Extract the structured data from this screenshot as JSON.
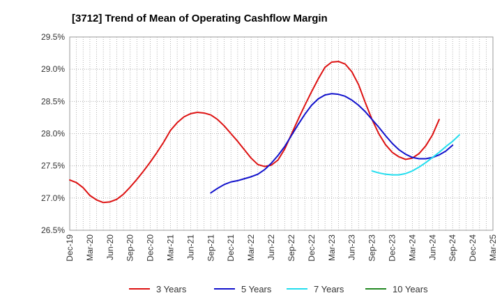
{
  "chart_data": {
    "type": "line",
    "title": "[3712]  Trend of Mean of Operating Cashflow Margin",
    "xlabel": "",
    "ylabel": "",
    "ylim": [
      26.5,
      29.5
    ],
    "yticks": [
      26.5,
      27.0,
      27.5,
      28.0,
      28.5,
      29.0,
      29.5
    ],
    "ytick_labels": [
      "26.5%",
      "27.0%",
      "27.5%",
      "28.0%",
      "28.5%",
      "29.0%",
      "29.5%"
    ],
    "x_range": [
      "Dec-19",
      "Mar-25"
    ],
    "xtick_labels": [
      "Dec-19",
      "Mar-20",
      "Jun-20",
      "Sep-20",
      "Dec-20",
      "Mar-21",
      "Jun-21",
      "Sep-21",
      "Dec-21",
      "Mar-22",
      "Jun-22",
      "Sep-22",
      "Dec-22",
      "Mar-23",
      "Jun-23",
      "Sep-23",
      "Dec-23",
      "Mar-24",
      "Jun-24",
      "Sep-24",
      "Dec-24",
      "Mar-25"
    ],
    "grid": true,
    "legend_position": "bottom",
    "series": [
      {
        "name": "3 Years",
        "color": "#dd1111",
        "start": "Dec-19",
        "values": [
          27.28,
          27.24,
          27.16,
          27.04,
          26.97,
          26.93,
          26.94,
          26.98,
          27.06,
          27.17,
          27.29,
          27.42,
          27.56,
          27.71,
          27.87,
          28.05,
          28.17,
          28.26,
          28.31,
          28.33,
          28.32,
          28.29,
          28.22,
          28.12,
          28.0,
          27.88,
          27.75,
          27.62,
          27.52,
          27.49,
          27.51,
          27.59,
          27.76,
          27.99,
          28.22,
          28.44,
          28.65,
          28.85,
          29.03,
          29.11,
          29.12,
          29.08,
          28.96,
          28.76,
          28.48,
          28.22,
          28.0,
          27.83,
          27.71,
          27.64,
          27.6,
          27.62,
          27.69,
          27.81,
          27.98,
          28.22
        ]
      },
      {
        "name": "5 Years",
        "color": "#1111cc",
        "start": "Sep-21",
        "values": [
          27.08,
          27.15,
          27.21,
          27.25,
          27.27,
          27.3,
          27.33,
          27.37,
          27.44,
          27.54,
          27.66,
          27.8,
          27.97,
          28.14,
          28.3,
          28.44,
          28.54,
          28.6,
          28.62,
          28.61,
          28.58,
          28.52,
          28.44,
          28.34,
          28.22,
          28.1,
          27.97,
          27.85,
          27.75,
          27.68,
          27.63,
          27.61,
          27.61,
          27.63,
          27.67,
          27.73,
          27.82
        ]
      },
      {
        "name": "7 Years",
        "color": "#22ddee",
        "start": "Sep-23",
        "values": [
          27.42,
          27.39,
          27.37,
          27.36,
          27.36,
          27.38,
          27.42,
          27.48,
          27.55,
          27.63,
          27.71,
          27.8,
          27.88,
          27.98
        ]
      },
      {
        "name": "10 Years",
        "color": "#228822",
        "start": "Sep-24",
        "values": []
      }
    ]
  }
}
